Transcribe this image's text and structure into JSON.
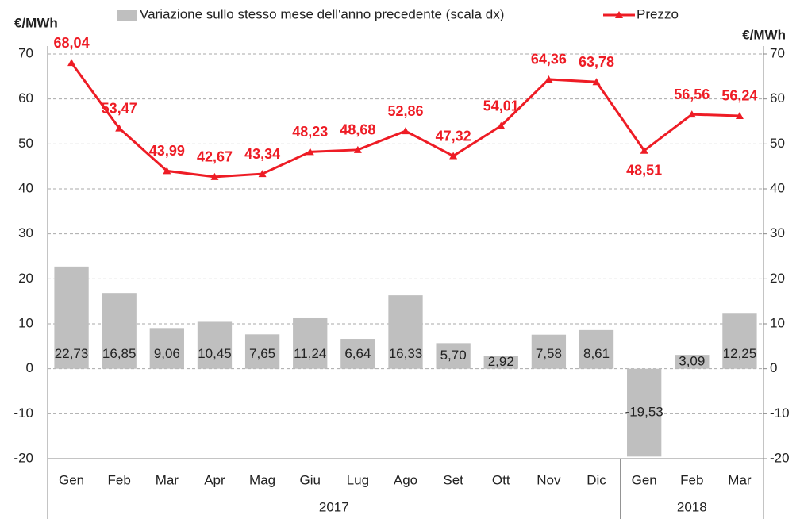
{
  "chart_data": {
    "type": "bar-line",
    "y_label": "€/MWh",
    "y2_label": "€/MWh",
    "categories": [
      "Gen",
      "Feb",
      "Mar",
      "Apr",
      "Mag",
      "Giu",
      "Lug",
      "Ago",
      "Set",
      "Ott",
      "Nov",
      "Dic",
      "Gen",
      "Feb",
      "Mar"
    ],
    "category_groups": [
      "2017",
      "2017",
      "2017",
      "2017",
      "2017",
      "2017",
      "2017",
      "2017",
      "2017",
      "2017",
      "2017",
      "2017",
      "2018",
      "2018",
      "2018"
    ],
    "ylim": [
      -20,
      70
    ],
    "yticks": [
      -20,
      -10,
      0,
      10,
      20,
      30,
      40,
      50,
      60,
      70
    ],
    "y2lim": [
      -20,
      70
    ],
    "y2ticks": [
      -20,
      -10,
      0,
      10,
      20,
      30,
      40,
      50,
      60,
      70
    ],
    "grid": true,
    "legend": "top",
    "series": [
      {
        "name": "Variazione sullo stesso mese dell'anno precedente (scala dx)",
        "kind": "bar",
        "axis": "y2",
        "color": "#bfbfbf",
        "values": [
          22.73,
          16.85,
          9.06,
          10.45,
          7.65,
          11.24,
          6.64,
          16.33,
          5.7,
          2.92,
          7.58,
          8.61,
          -19.53,
          3.09,
          12.25
        ],
        "value_labels": [
          "22,73",
          "16,85",
          "9,06",
          "10,45",
          "7,65",
          "11,24",
          "6,64",
          "16,33",
          "5,70",
          "2,92",
          "7,58",
          "8,61",
          "-19,53",
          "3,09",
          "12,25"
        ]
      },
      {
        "name": "Prezzo",
        "kind": "line",
        "color": "#ee1c25",
        "values": [
          68.04,
          53.47,
          43.99,
          42.67,
          43.34,
          48.23,
          48.68,
          52.86,
          47.32,
          54.01,
          64.36,
          63.78,
          48.51,
          56.56,
          56.24
        ],
        "value_labels": [
          "68,04",
          "53,47",
          "43,99",
          "42,67",
          "43,34",
          "48,23",
          "48,68",
          "52,86",
          "47,32",
          "54,01",
          "64,36",
          "63,78",
          "48,51",
          "56,56",
          "56,24"
        ]
      }
    ]
  }
}
